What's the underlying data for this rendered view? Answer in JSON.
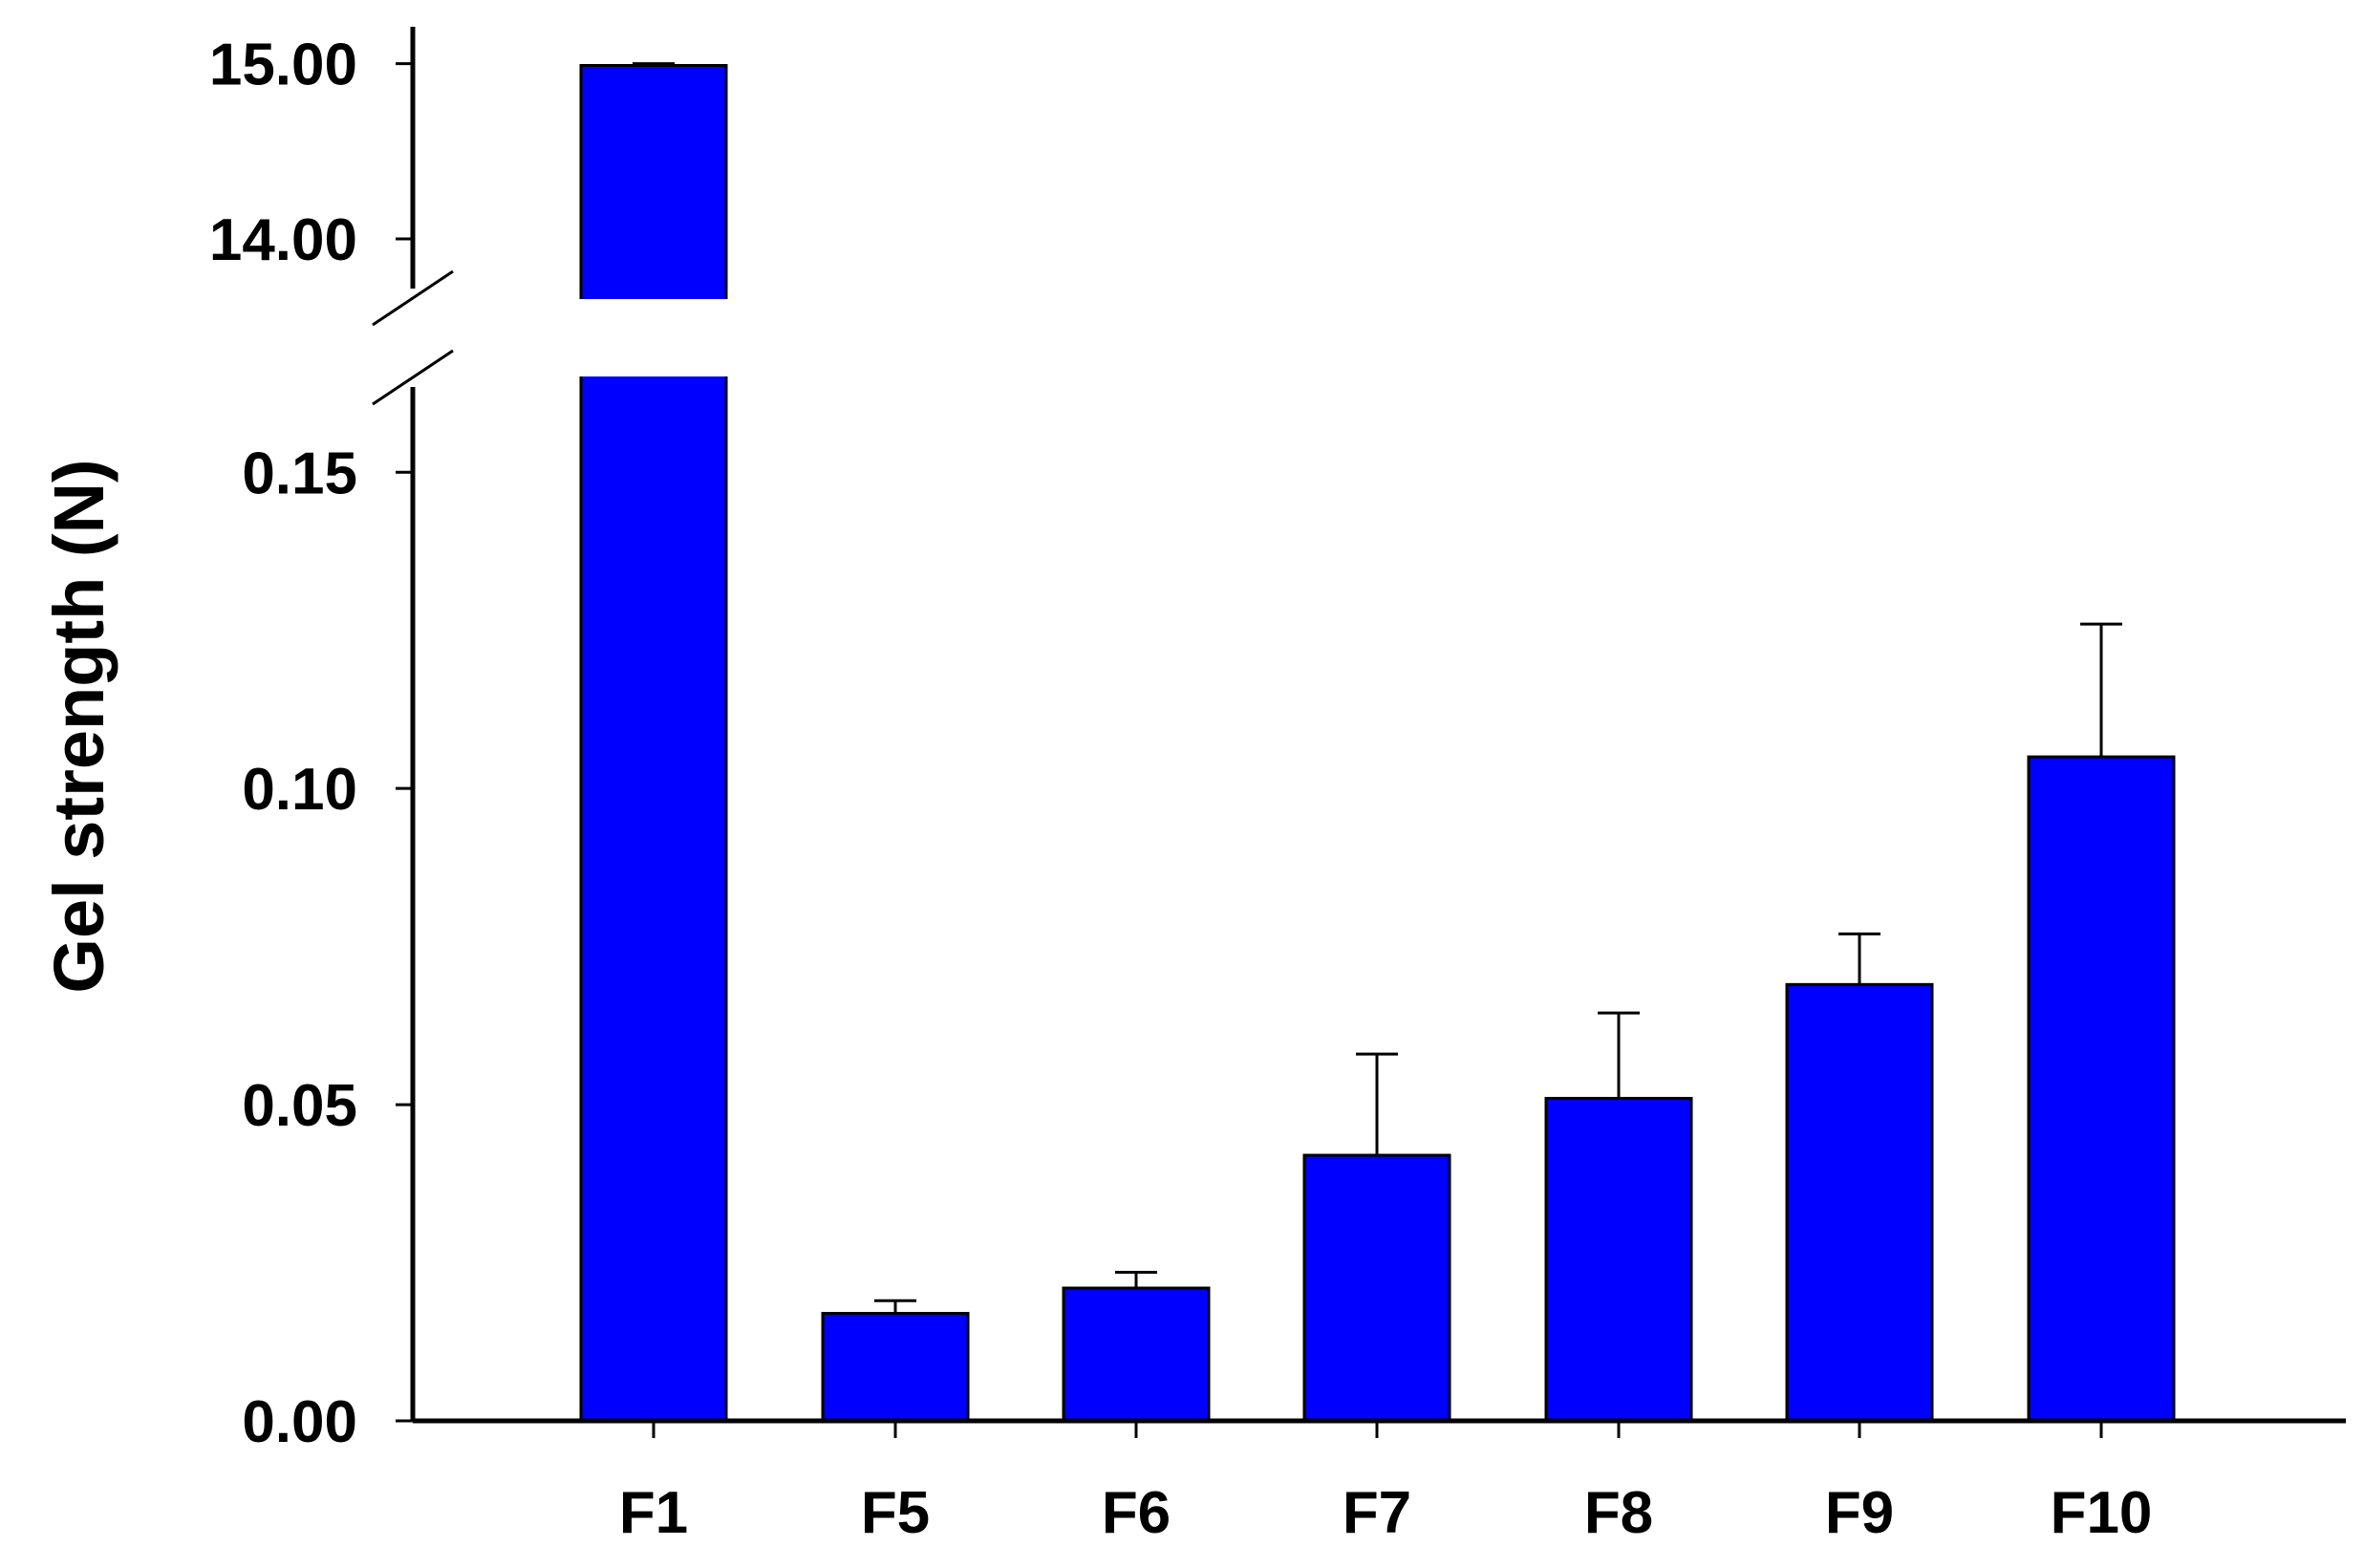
{
  "chart_data": {
    "type": "bar",
    "title": "",
    "xlabel": "",
    "ylabel": "Gel strength (N)",
    "categories": [
      "F1",
      "F5",
      "F6",
      "F7",
      "F8",
      "F9",
      "F10"
    ],
    "values": [
      14.99,
      0.017,
      0.021,
      0.042,
      0.051,
      0.069,
      0.105
    ],
    "errors": [
      0.01,
      0.002,
      0.0025,
      0.016,
      0.0135,
      0.008,
      0.021
    ],
    "bar_color": "#0000ff",
    "y_axis": {
      "broken": true,
      "lower_range": [
        0,
        0.165
      ],
      "upper_range": [
        13.7,
        15.2
      ],
      "lower_ticks": [
        "0.00",
        "0.05",
        "0.10",
        "0.15"
      ],
      "upper_ticks": [
        "14.00",
        "15.00"
      ]
    },
    "grid": false,
    "legend": "none"
  }
}
